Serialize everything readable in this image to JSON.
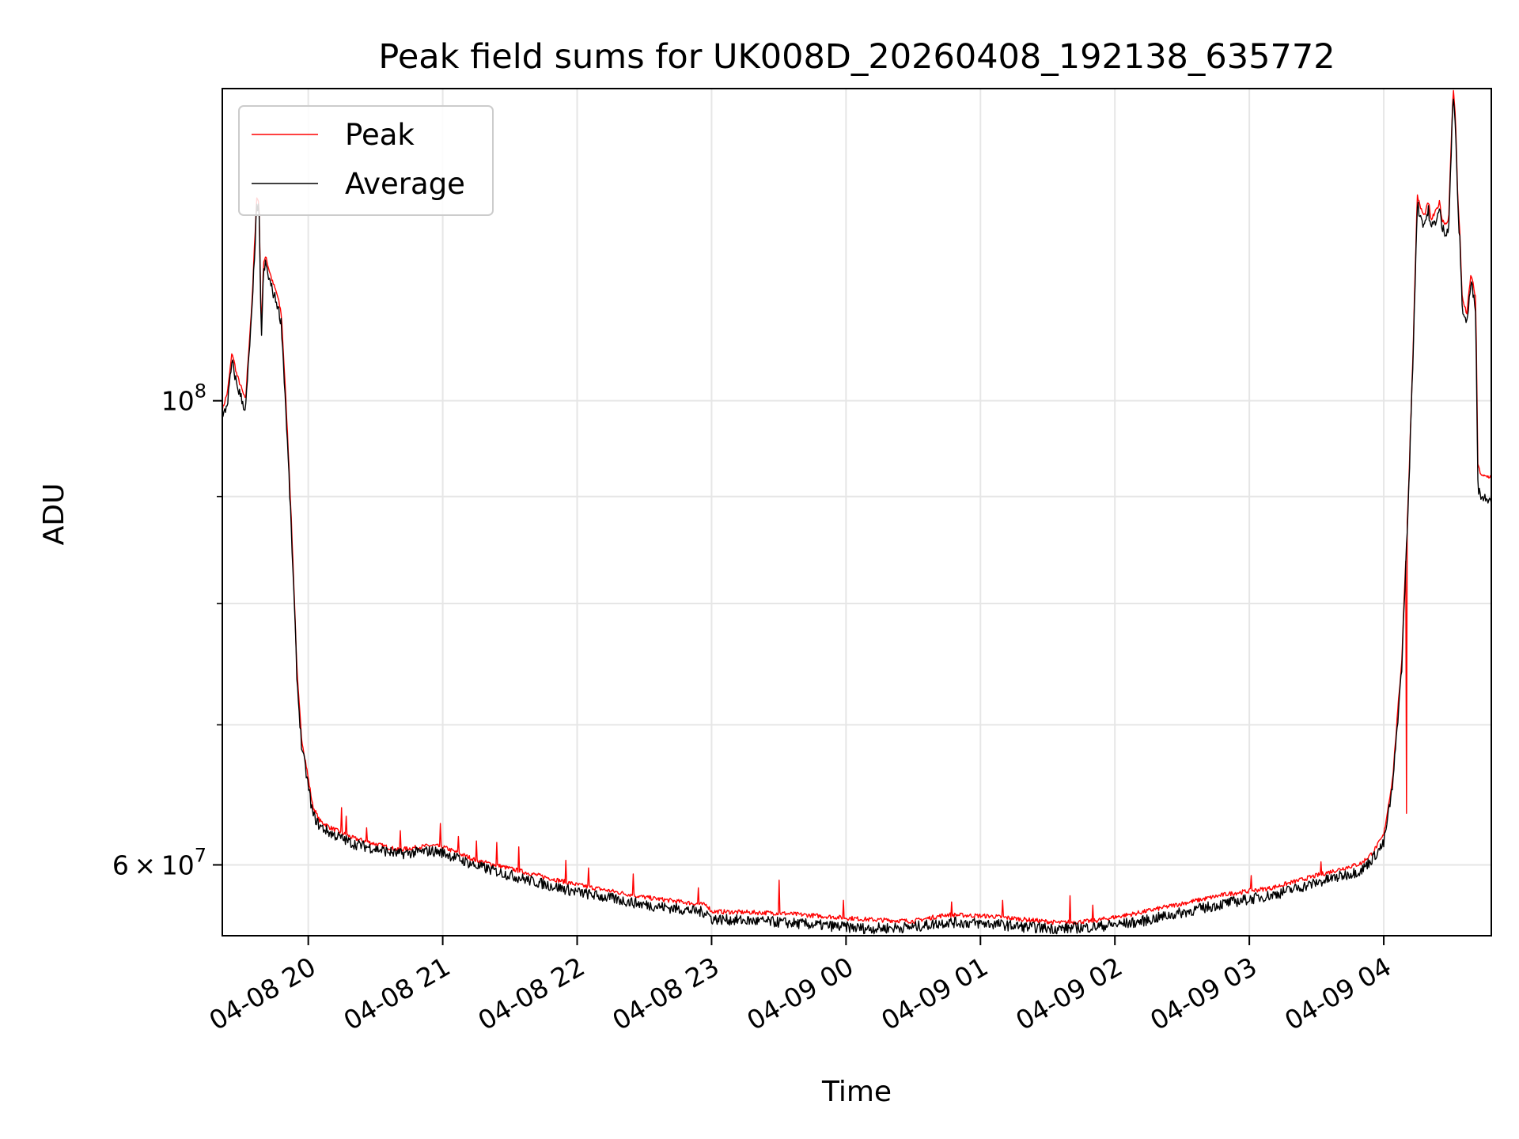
{
  "chart_data": {
    "type": "line",
    "title": "Peak field sums for UK008D_20260408_192138_635772",
    "xlabel": "Time",
    "ylabel": "ADU",
    "y_scale": "log",
    "ylim": [
      55500000,
      141000000
    ],
    "xlim": [
      "2026-04-08 19:21:38",
      "2026-04-09 04:48:00"
    ],
    "x_tick_labels": [
      "04-08 20",
      "04-08 21",
      "04-08 22",
      "04-08 23",
      "04-09 00",
      "04-09 01",
      "04-09 02",
      "04-09 03",
      "04-09 04"
    ],
    "x_ticks": [
      "2026-04-08 20:00",
      "2026-04-08 21:00",
      "2026-04-08 22:00",
      "2026-04-08 23:00",
      "2026-04-09 00:00",
      "2026-04-09 01:00",
      "2026-04-09 02:00",
      "2026-04-09 03:00",
      "2026-04-09 04:00"
    ],
    "y_major_ticks": [
      {
        "value": 60000000,
        "base": "6",
        "exp": "7"
      },
      {
        "value": 100000000,
        "base": "",
        "exp": "8"
      }
    ],
    "y_minor_ticks": [
      70000000,
      80000000,
      90000000
    ],
    "grid": true,
    "legend": "upper left",
    "series": [
      {
        "name": "Peak",
        "color": "#ff0000",
        "x": [
          "2026-04-08 19:21:38",
          "2026-04-08 19:24",
          "2026-04-08 19:26",
          "2026-04-08 19:28",
          "2026-04-08 19:32",
          "2026-04-08 19:35",
          "2026-04-08 19:37",
          "2026-04-08 19:38",
          "2026-04-08 19:39",
          "2026-04-08 19:40",
          "2026-04-08 19:41",
          "2026-04-08 19:42",
          "2026-04-08 19:44",
          "2026-04-08 19:46",
          "2026-04-08 19:48",
          "2026-04-08 19:52",
          "2026-04-08 19:55",
          "2026-04-08 19:57",
          "2026-04-08 19:59",
          "2026-04-08 20:00",
          "2026-04-08 20:02",
          "2026-04-08 20:05",
          "2026-04-08 20:10",
          "2026-04-08 20:20",
          "2026-04-08 20:40",
          "2026-04-08 20:55",
          "2026-04-08 21:00",
          "2026-04-08 21:15",
          "2026-04-08 21:40",
          "2026-04-08 22:00",
          "2026-04-08 22:30",
          "2026-04-08 22:58",
          "2026-04-08 23:00",
          "2026-04-08 23:30",
          "2026-04-08 23:50",
          "2026-04-09 00:10",
          "2026-04-09 00:30",
          "2026-04-09 00:45",
          "2026-04-09 01:05",
          "2026-04-09 01:20",
          "2026-04-09 01:35",
          "2026-04-09 01:50",
          "2026-04-09 02:10",
          "2026-04-09 02:30",
          "2026-04-09 02:50",
          "2026-04-09 03:10",
          "2026-04-09 03:30",
          "2026-04-09 03:50",
          "2026-04-09 03:55",
          "2026-04-09 04:00",
          "2026-04-09 04:04",
          "2026-04-09 04:08",
          "2026-04-09 04:11",
          "2026-04-09 04:13",
          "2026-04-09 04:15",
          "2026-04-09 04:16",
          "2026-04-09 04:18",
          "2026-04-09 04:20",
          "2026-04-09 04:21",
          "2026-04-09 04:23",
          "2026-04-09 04:25",
          "2026-04-09 04:26",
          "2026-04-09 04:28",
          "2026-04-09 04:29",
          "2026-04-09 04:31",
          "2026-04-09 04:32",
          "2026-04-09 04:33",
          "2026-04-09 04:34",
          "2026-04-09 04:35",
          "2026-04-09 04:37",
          "2026-04-09 04:39",
          "2026-04-09 04:41",
          "2026-04-09 04:42",
          "2026-04-09 04:44",
          "2026-04-09 04:46",
          "2026-04-09 04:47",
          "2026-04-09 04:48"
        ],
        "values": [
          99000000,
          101000000,
          105500000,
          103000000,
          100000000,
          112000000,
          125000000,
          124500000,
          108000000,
          116000000,
          117500000,
          116000000,
          114000000,
          112500000,
          110000000,
          90000000,
          74000000,
          69000000,
          67000000,
          66000000,
          64000000,
          63000000,
          62500000,
          61800000,
          61000000,
          61300000,
          61200000,
          60300000,
          59400000,
          58700000,
          57900000,
          57400000,
          57000000,
          56900000,
          56700000,
          56500000,
          56400000,
          56800000,
          56700000,
          56500000,
          56300000,
          56400000,
          56900000,
          57500000,
          58100000,
          58500000,
          59300000,
          60100000,
          60800000,
          62000000,
          66000000,
          75000000,
          90000000,
          105000000,
          125500000,
          124000000,
          122500000,
          124500000,
          122000000,
          123000000,
          124500000,
          122000000,
          121500000,
          122500000,
          141000000,
          137000000,
          125000000,
          120000000,
          112000000,
          110000000,
          115000000,
          112000000,
          93000000,
          92000000,
          92000000,
          92000000,
          92000000
        ],
        "spikes": [
          [
            "2026-04-08 20:15",
            63900000
          ],
          [
            "2026-04-08 20:17",
            63300000
          ],
          [
            "2026-04-08 20:26",
            62500000
          ],
          [
            "2026-04-08 20:41",
            62300000
          ],
          [
            "2026-04-08 20:59",
            62800000
          ],
          [
            "2026-04-08 21:07",
            61900000
          ],
          [
            "2026-04-08 21:15",
            61600000
          ],
          [
            "2026-04-08 21:24",
            61500000
          ],
          [
            "2026-04-08 21:34",
            61200000
          ],
          [
            "2026-04-08 21:55",
            60300000
          ],
          [
            "2026-04-08 22:05",
            59800000
          ],
          [
            "2026-04-08 22:25",
            59400000
          ],
          [
            "2026-04-08 22:54",
            58500000
          ],
          [
            "2026-04-08 23:30",
            59000000
          ],
          [
            "2026-04-08 23:59",
            57700000
          ],
          [
            "2026-04-09 00:47",
            57600000
          ],
          [
            "2026-04-09 01:10",
            57700000
          ],
          [
            "2026-04-09 01:40",
            58000000
          ],
          [
            "2026-04-09 01:50",
            57400000
          ],
          [
            "2026-04-09 03:01",
            59300000
          ],
          [
            "2026-04-09 03:32",
            60200000
          ],
          [
            "2026-04-09 04:10",
            63500000
          ]
        ]
      },
      {
        "name": "Average",
        "color": "#000000",
        "x": [
          "2026-04-08 19:21:38",
          "2026-04-08 19:24",
          "2026-04-08 19:26",
          "2026-04-08 19:28",
          "2026-04-08 19:32",
          "2026-04-08 19:35",
          "2026-04-08 19:37",
          "2026-04-08 19:38",
          "2026-04-08 19:39",
          "2026-04-08 19:40",
          "2026-04-08 19:41",
          "2026-04-08 19:42",
          "2026-04-08 19:44",
          "2026-04-08 19:46",
          "2026-04-08 19:48",
          "2026-04-08 19:52",
          "2026-04-08 19:55",
          "2026-04-08 19:57",
          "2026-04-08 19:59",
          "2026-04-08 20:00",
          "2026-04-08 20:02",
          "2026-04-08 20:05",
          "2026-04-08 20:10",
          "2026-04-08 20:20",
          "2026-04-08 20:40",
          "2026-04-08 20:55",
          "2026-04-08 21:00",
          "2026-04-08 21:15",
          "2026-04-08 21:40",
          "2026-04-08 22:00",
          "2026-04-08 22:30",
          "2026-04-08 22:58",
          "2026-04-08 23:00",
          "2026-04-08 23:30",
          "2026-04-08 23:50",
          "2026-04-09 00:10",
          "2026-04-09 00:30",
          "2026-04-09 00:45",
          "2026-04-09 01:05",
          "2026-04-09 01:20",
          "2026-04-09 01:35",
          "2026-04-09 01:50",
          "2026-04-09 02:10",
          "2026-04-09 02:30",
          "2026-04-09 02:50",
          "2026-04-09 03:10",
          "2026-04-09 03:30",
          "2026-04-09 03:50",
          "2026-04-09 03:55",
          "2026-04-09 04:00",
          "2026-04-09 04:04",
          "2026-04-09 04:08",
          "2026-04-09 04:11",
          "2026-04-09 04:13",
          "2026-04-09 04:15",
          "2026-04-09 04:16",
          "2026-04-09 04:18",
          "2026-04-09 04:20",
          "2026-04-09 04:21",
          "2026-04-09 04:23",
          "2026-04-09 04:25",
          "2026-04-09 04:26",
          "2026-04-09 04:28",
          "2026-04-09 04:29",
          "2026-04-09 04:31",
          "2026-04-09 04:32",
          "2026-04-09 04:33",
          "2026-04-09 04:34",
          "2026-04-09 04:35",
          "2026-04-09 04:37",
          "2026-04-09 04:39",
          "2026-04-09 04:41",
          "2026-04-09 04:42",
          "2026-04-09 04:44",
          "2026-04-09 04:46",
          "2026-04-09 04:47",
          "2026-04-09 04:48"
        ],
        "values": [
          98000000,
          100000000,
          104500000,
          102000000,
          99000000,
          111000000,
          124000000,
          123500000,
          107000000,
          115000000,
          116500000,
          115000000,
          113000000,
          111500000,
          109000000,
          89000000,
          73500000,
          68500000,
          66500000,
          65500000,
          63500000,
          62700000,
          62200000,
          61500000,
          60800000,
          61000000,
          60900000,
          60000000,
          59000000,
          58300000,
          57500000,
          57000000,
          56600000,
          56400000,
          56200000,
          56000000,
          56100000,
          56400000,
          56300000,
          56100000,
          56000000,
          56100000,
          56400000,
          57000000,
          57600000,
          58100000,
          58900000,
          59700000,
          60500000,
          61500000,
          65500000,
          74500000,
          89500000,
          104500000,
          124500000,
          123000000,
          121500000,
          123500000,
          121000000,
          122000000,
          123500000,
          121000000,
          120500000,
          121500000,
          140000000,
          136000000,
          124000000,
          119000000,
          111000000,
          109000000,
          114000000,
          111000000,
          91000000,
          90000000,
          90000000,
          90000000,
          90000000
        ]
      }
    ]
  }
}
